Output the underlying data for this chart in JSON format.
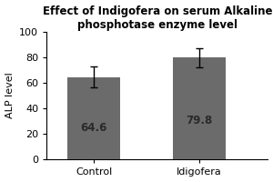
{
  "title": "Effect of Indigofera on serum Alkaline\nphosphotase enzyme level",
  "categories": [
    "Control",
    "Idigofera"
  ],
  "values": [
    64.6,
    79.8
  ],
  "errors": [
    8.5,
    7.5
  ],
  "bar_color": "#6b6b6b",
  "bar_width": 0.5,
  "ylabel": "ALP level",
  "ylim": [
    0,
    100
  ],
  "yticks": [
    0,
    20,
    40,
    60,
    80,
    100
  ],
  "title_fontsize": 8.5,
  "label_fontsize": 8,
  "tick_fontsize": 8,
  "value_fontsize": 8.5,
  "background_color": "#ffffff",
  "bar_positions": [
    1,
    2
  ],
  "value_label_color": "#2a2a2a"
}
